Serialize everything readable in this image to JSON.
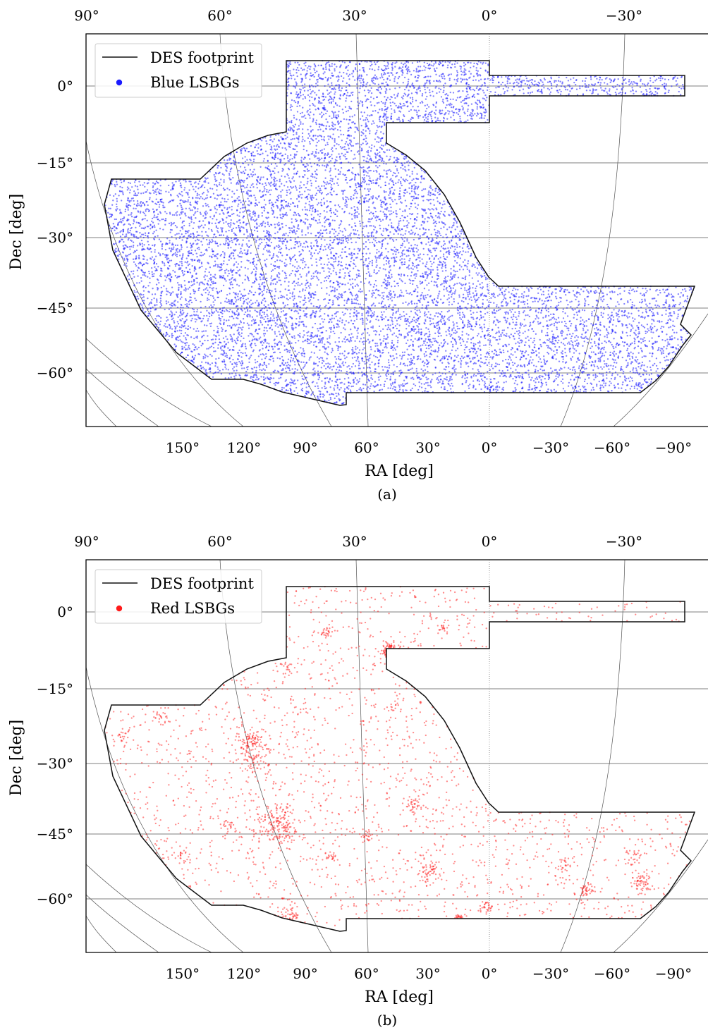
{
  "chart_data": [
    {
      "type": "scatter",
      "caption": "(a)",
      "xlabel": "RA [deg]",
      "ylabel": "Dec [deg]",
      "x_ticks_bottom": [
        "150°",
        "120°",
        "90°",
        "60°",
        "30°",
        "0°",
        "−30°",
        "−60°",
        "−90°"
      ],
      "x_ticks_top": [
        "90°",
        "60°",
        "30°",
        "0°",
        "−30°"
      ],
      "y_ticks": [
        "0°",
        "−15°",
        "−30°",
        "−45°",
        "−60°"
      ],
      "legend": {
        "position": "top-left",
        "entries": [
          "DES footprint",
          "Blue LSBGs"
        ]
      },
      "series": [
        {
          "name": "DES footprint",
          "kind": "outline"
        },
        {
          "name": "Blue LSBGs",
          "color": "#1a1aff",
          "distribution": "uniform"
        }
      ]
    },
    {
      "type": "scatter",
      "caption": "(b)",
      "xlabel": "RA [deg]",
      "ylabel": "Dec [deg]",
      "x_ticks_bottom": [
        "150°",
        "120°",
        "90°",
        "60°",
        "30°",
        "0°",
        "−30°",
        "−60°",
        "−90°"
      ],
      "x_ticks_top": [
        "90°",
        "60°",
        "30°",
        "0°",
        "−30°"
      ],
      "y_ticks": [
        "0°",
        "−15°",
        "−30°",
        "−45°",
        "−60°"
      ],
      "legend": {
        "position": "top-left",
        "entries": [
          "DES footprint",
          "Red LSBGs"
        ]
      },
      "series": [
        {
          "name": "DES footprint",
          "kind": "outline"
        },
        {
          "name": "Red LSBGs",
          "color": "#ff1a1a",
          "distribution": "clustered"
        }
      ]
    }
  ]
}
